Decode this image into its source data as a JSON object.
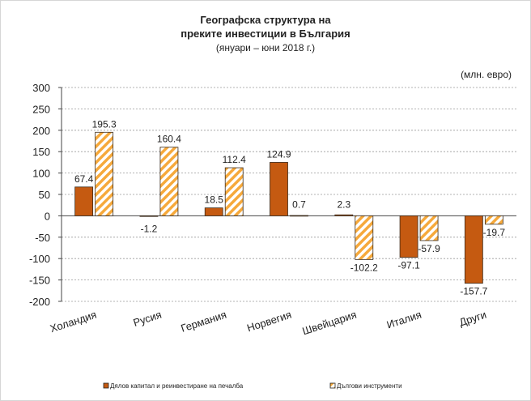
{
  "chart_data": {
    "type": "bar",
    "title": [
      "Географска структура на",
      "преките инвестиции в България"
    ],
    "subtitle": "(януари – юни 2018 г.)",
    "unit_label": "(млн. евро)",
    "categories": [
      "Холандия",
      "Русия",
      "Германия",
      "Норвегия",
      "Швейцария",
      "Италия",
      "Други"
    ],
    "series": [
      {
        "name": "Дялов капитал и реинвестиране на печалба",
        "values": [
          67.4,
          -1.2,
          18.5,
          124.9,
          2.3,
          -97.1,
          -157.7
        ],
        "color": "#c55a11"
      },
      {
        "name": "Дългови инструменти",
        "values": [
          195.3,
          160.4,
          112.4,
          0.7,
          -102.2,
          -57.9,
          -19.7
        ],
        "color": "#f4b183"
      }
    ],
    "data_labels": [
      [
        "67.4",
        "-1.2",
        "18.5",
        "124.9",
        "2.3",
        "-97.1",
        "-157.7"
      ],
      [
        "195.3",
        "160.4",
        "112.4",
        "0.7",
        "-102.2",
        "-57.9",
        "-19.7"
      ]
    ],
    "ylim": [
      -200,
      300
    ],
    "yticks": [
      300,
      250,
      200,
      150,
      100,
      50,
      0,
      -50,
      -100,
      -150,
      -200
    ],
    "grid": true,
    "legend_position": "bottom"
  }
}
